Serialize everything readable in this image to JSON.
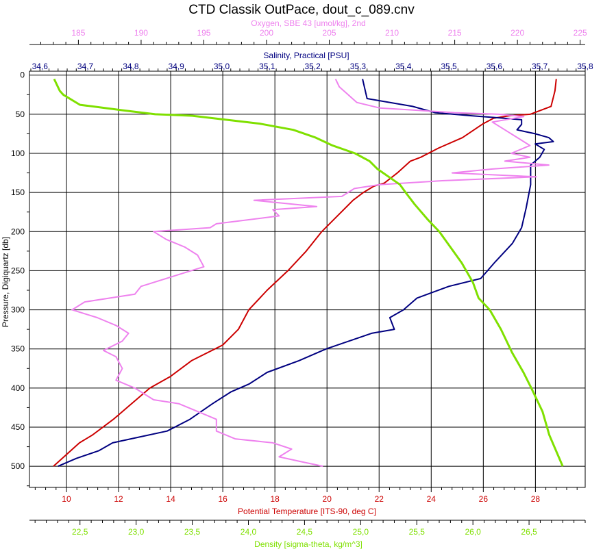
{
  "chart_data": {
    "type": "line",
    "title": "CTD Classik OutPace, dout_c_089.cnv",
    "grid": true,
    "y_axis": {
      "label": "Pressure, Digiquartz [db]",
      "range": [
        -5,
        527
      ],
      "reversed": true,
      "ticks": [
        "0",
        "50",
        "100",
        "150",
        "200",
        "250",
        "300",
        "350",
        "400",
        "450",
        "500"
      ]
    },
    "x_axes": [
      {
        "key": "oxygen",
        "label": "Oxygen, SBE 43 [umol/kg], 2nd",
        "position": "top",
        "color": "#ee82ee",
        "range": [
          181.1,
          225.4
        ],
        "ticks": [
          "185",
          "190",
          "195",
          "200",
          "205",
          "210",
          "215",
          "220",
          "225"
        ]
      },
      {
        "key": "salinity",
        "label": "Salinity, Practical [PSU]",
        "position": "top",
        "color": "#000080",
        "range": [
          34.577,
          35.8
        ],
        "ticks": [
          "34,6",
          "34,7",
          "34,8",
          "34,9",
          "35,0",
          "35,1",
          "35,2",
          "35,3",
          "35,4",
          "35,5",
          "35,6",
          "35,7",
          "35,8"
        ]
      },
      {
        "key": "temperature",
        "label": "Potential Temperature [ITS-90, deg C]",
        "position": "bottom",
        "color": "#cc0000",
        "range": [
          8.58,
          29.91
        ],
        "ticks": [
          "10",
          "12",
          "14",
          "16",
          "18",
          "20",
          "22",
          "24",
          "26",
          "28"
        ]
      },
      {
        "key": "density",
        "label": "Density [sigma-theta, kg/m^3]",
        "position": "bottom",
        "color": "#7fe000",
        "range": [
          22.05,
          27.0
        ],
        "ticks": [
          "22,5",
          "23,0",
          "23,5",
          "24,0",
          "24,5",
          "25,0",
          "25,5",
          "26,0",
          "26,5"
        ]
      }
    ],
    "series": [
      {
        "key": "temperature",
        "color": "#cc0000",
        "points": [
          [
            28.8,
            5
          ],
          [
            28.75,
            20
          ],
          [
            28.6,
            40
          ],
          [
            27.8,
            50
          ],
          [
            27.0,
            52
          ],
          [
            26.4,
            55
          ],
          [
            26.0,
            62
          ],
          [
            25.2,
            80
          ],
          [
            24.3,
            93
          ],
          [
            23.6,
            105
          ],
          [
            23.2,
            110
          ],
          [
            22.7,
            125
          ],
          [
            22.2,
            138
          ],
          [
            21.8,
            142
          ],
          [
            21.4,
            150
          ],
          [
            21.0,
            160
          ],
          [
            20.4,
            180
          ],
          [
            19.8,
            200
          ],
          [
            19.2,
            225
          ],
          [
            18.5,
            250
          ],
          [
            17.7,
            275
          ],
          [
            17.0,
            300
          ],
          [
            16.6,
            325
          ],
          [
            16.0,
            345
          ],
          [
            14.8,
            365
          ],
          [
            14.0,
            385
          ],
          [
            13.2,
            400
          ],
          [
            12.5,
            420
          ],
          [
            11.8,
            440
          ],
          [
            11.0,
            460
          ],
          [
            10.5,
            470
          ],
          [
            10.0,
            485
          ],
          [
            9.5,
            500
          ]
        ]
      },
      {
        "key": "salinity",
        "color": "#000080",
        "points": [
          [
            35.31,
            5
          ],
          [
            35.32,
            30
          ],
          [
            35.42,
            40
          ],
          [
            35.47,
            48
          ],
          [
            35.55,
            52
          ],
          [
            35.62,
            55
          ],
          [
            35.66,
            57
          ],
          [
            35.66,
            63
          ],
          [
            35.65,
            70
          ],
          [
            35.69,
            75
          ],
          [
            35.72,
            80
          ],
          [
            35.73,
            85
          ],
          [
            35.69,
            88
          ],
          [
            35.71,
            95
          ],
          [
            35.7,
            105
          ],
          [
            35.68,
            115
          ],
          [
            35.68,
            140
          ],
          [
            35.67,
            170
          ],
          [
            35.66,
            195
          ],
          [
            35.64,
            215
          ],
          [
            35.6,
            240
          ],
          [
            35.57,
            260
          ],
          [
            35.5,
            270
          ],
          [
            35.43,
            285
          ],
          [
            35.4,
            300
          ],
          [
            35.37,
            310
          ],
          [
            35.38,
            325
          ],
          [
            35.33,
            330
          ],
          [
            35.28,
            340
          ],
          [
            35.23,
            350
          ],
          [
            35.17,
            365
          ],
          [
            35.1,
            380
          ],
          [
            35.06,
            395
          ],
          [
            35.02,
            405
          ],
          [
            34.98,
            420
          ],
          [
            34.93,
            440
          ],
          [
            34.88,
            455
          ],
          [
            34.8,
            465
          ],
          [
            34.76,
            470
          ],
          [
            34.73,
            480
          ],
          [
            34.68,
            490
          ],
          [
            34.64,
            500
          ]
        ]
      },
      {
        "key": "oxygen",
        "color": "#ee82ee",
        "points": [
          [
            205.5,
            5
          ],
          [
            205.8,
            15
          ],
          [
            206.5,
            25
          ],
          [
            207.2,
            35
          ],
          [
            209,
            42
          ],
          [
            212,
            45
          ],
          [
            215,
            48
          ],
          [
            218.5,
            50
          ],
          [
            220.5,
            53
          ],
          [
            218,
            60
          ],
          [
            219,
            70
          ],
          [
            220,
            80
          ],
          [
            221,
            90
          ],
          [
            219.5,
            100
          ],
          [
            221,
            105
          ],
          [
            219,
            110
          ],
          [
            222.5,
            115
          ],
          [
            218,
            120
          ],
          [
            214.8,
            125
          ],
          [
            221.5,
            130
          ],
          [
            214,
            135
          ],
          [
            209,
            140
          ],
          [
            207,
            145
          ],
          [
            206,
            155
          ],
          [
            199,
            160
          ],
          [
            204,
            168
          ],
          [
            200.5,
            172
          ],
          [
            201,
            180
          ],
          [
            196,
            190
          ],
          [
            195.5,
            195
          ],
          [
            191,
            200
          ],
          [
            192,
            210
          ],
          [
            193.5,
            220
          ],
          [
            194.5,
            230
          ],
          [
            195,
            245
          ],
          [
            193,
            255
          ],
          [
            190,
            270
          ],
          [
            189.5,
            280
          ],
          [
            185.5,
            290
          ],
          [
            184.5,
            300
          ],
          [
            186.5,
            310
          ],
          [
            188,
            320
          ],
          [
            189,
            330
          ],
          [
            188.5,
            340
          ],
          [
            187,
            352
          ],
          [
            188,
            360
          ],
          [
            188.5,
            375
          ],
          [
            188,
            390
          ],
          [
            189.5,
            400
          ],
          [
            191,
            415
          ],
          [
            193,
            420
          ],
          [
            194.5,
            430
          ],
          [
            196,
            440
          ],
          [
            196,
            455
          ],
          [
            197.5,
            465
          ],
          [
            200.5,
            470
          ],
          [
            202,
            478
          ],
          [
            201,
            488
          ],
          [
            203,
            495
          ],
          [
            204.5,
            500
          ]
        ]
      },
      {
        "key": "density",
        "color": "#7fe000",
        "points": [
          [
            22.27,
            5
          ],
          [
            22.32,
            20
          ],
          [
            22.35,
            25
          ],
          [
            22.5,
            38
          ],
          [
            22.88,
            45
          ],
          [
            23.17,
            50
          ],
          [
            23.5,
            52
          ],
          [
            24.1,
            62
          ],
          [
            24.4,
            70
          ],
          [
            24.6,
            80
          ],
          [
            24.75,
            90
          ],
          [
            24.95,
            100
          ],
          [
            25.08,
            110
          ],
          [
            25.15,
            120
          ],
          [
            25.25,
            130
          ],
          [
            25.35,
            140
          ],
          [
            25.4,
            150
          ],
          [
            25.48,
            165
          ],
          [
            25.6,
            185
          ],
          [
            25.7,
            200
          ],
          [
            25.8,
            220
          ],
          [
            25.9,
            240
          ],
          [
            26.0,
            265
          ],
          [
            26.05,
            285
          ],
          [
            26.15,
            300
          ],
          [
            26.25,
            325
          ],
          [
            26.35,
            355
          ],
          [
            26.45,
            380
          ],
          [
            26.52,
            400
          ],
          [
            26.62,
            430
          ],
          [
            26.68,
            460
          ],
          [
            26.8,
            500
          ]
        ]
      }
    ]
  }
}
